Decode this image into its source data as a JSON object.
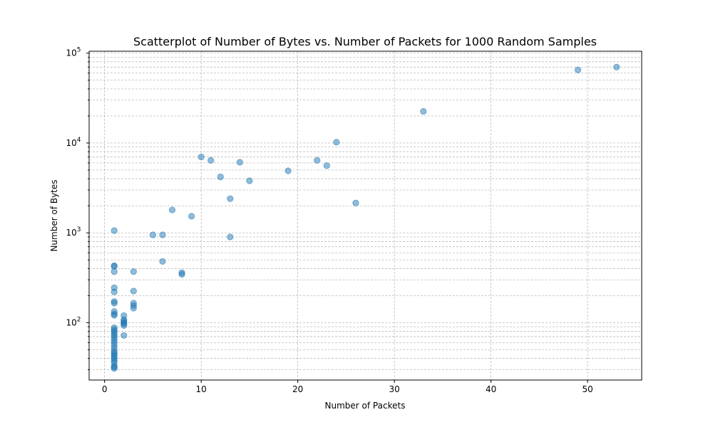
{
  "chart_data": {
    "type": "scatter",
    "title": "Scatterplot of Number of Bytes vs. Number of Packets for 1000 Random Samples",
    "xlabel": "Number of Packets",
    "ylabel": "Number of Bytes",
    "xlim": [
      -1.6,
      55.6
    ],
    "ylim": [
      23,
      105000
    ],
    "yscale": "log",
    "grid": true,
    "x_ticks": [
      0,
      10,
      20,
      30,
      40,
      50
    ],
    "x_tick_labels": [
      "0",
      "10",
      "20",
      "30",
      "40",
      "50"
    ],
    "y_major_ticks": [
      100,
      1000,
      10000,
      100000
    ],
    "y_tick_labels": [
      {
        "base": "10",
        "exp": "2"
      },
      {
        "base": "10",
        "exp": "3"
      },
      {
        "base": "10",
        "exp": "4"
      },
      {
        "base": "10",
        "exp": "5"
      }
    ],
    "marker_color": "#1f77b4",
    "marker_alpha": 0.5,
    "points": [
      [
        53,
        70000
      ],
      [
        49,
        65000
      ],
      [
        33,
        22500
      ],
      [
        24,
        10200
      ],
      [
        26,
        2150
      ],
      [
        22,
        6400
      ],
      [
        23,
        5600
      ],
      [
        19,
        4900
      ],
      [
        15,
        3800
      ],
      [
        14,
        6100
      ],
      [
        12,
        4200
      ],
      [
        11,
        6400
      ],
      [
        10,
        7000
      ],
      [
        13,
        2400
      ],
      [
        13,
        900
      ],
      [
        9,
        1530
      ],
      [
        7,
        1800
      ],
      [
        6,
        950
      ],
      [
        6,
        480
      ],
      [
        5,
        950
      ],
      [
        8,
        360
      ],
      [
        8,
        345
      ],
      [
        3,
        370
      ],
      [
        3,
        225
      ],
      [
        3,
        165
      ],
      [
        3,
        155
      ],
      [
        3,
        145
      ],
      [
        2,
        120
      ],
      [
        2,
        108
      ],
      [
        2,
        104
      ],
      [
        2,
        100
      ],
      [
        2,
        97
      ],
      [
        2,
        93
      ],
      [
        2,
        72
      ],
      [
        1,
        1060
      ],
      [
        1,
        430
      ],
      [
        1,
        425
      ],
      [
        1,
        370
      ],
      [
        1,
        245
      ],
      [
        1,
        220
      ],
      [
        1,
        172
      ],
      [
        1,
        165
      ],
      [
        1,
        133
      ],
      [
        1,
        125
      ],
      [
        1,
        121
      ],
      [
        1,
        88
      ],
      [
        1,
        84
      ],
      [
        1,
        80
      ],
      [
        1,
        76
      ],
      [
        1,
        72
      ],
      [
        1,
        68
      ],
      [
        1,
        64
      ],
      [
        1,
        60
      ],
      [
        1,
        56
      ],
      [
        1,
        52
      ],
      [
        1,
        48
      ],
      [
        1,
        46
      ],
      [
        1,
        44
      ],
      [
        1,
        42
      ],
      [
        1,
        40
      ],
      [
        1,
        38
      ],
      [
        1,
        36
      ],
      [
        1,
        33
      ],
      [
        1,
        32
      ],
      [
        1,
        31
      ]
    ]
  }
}
